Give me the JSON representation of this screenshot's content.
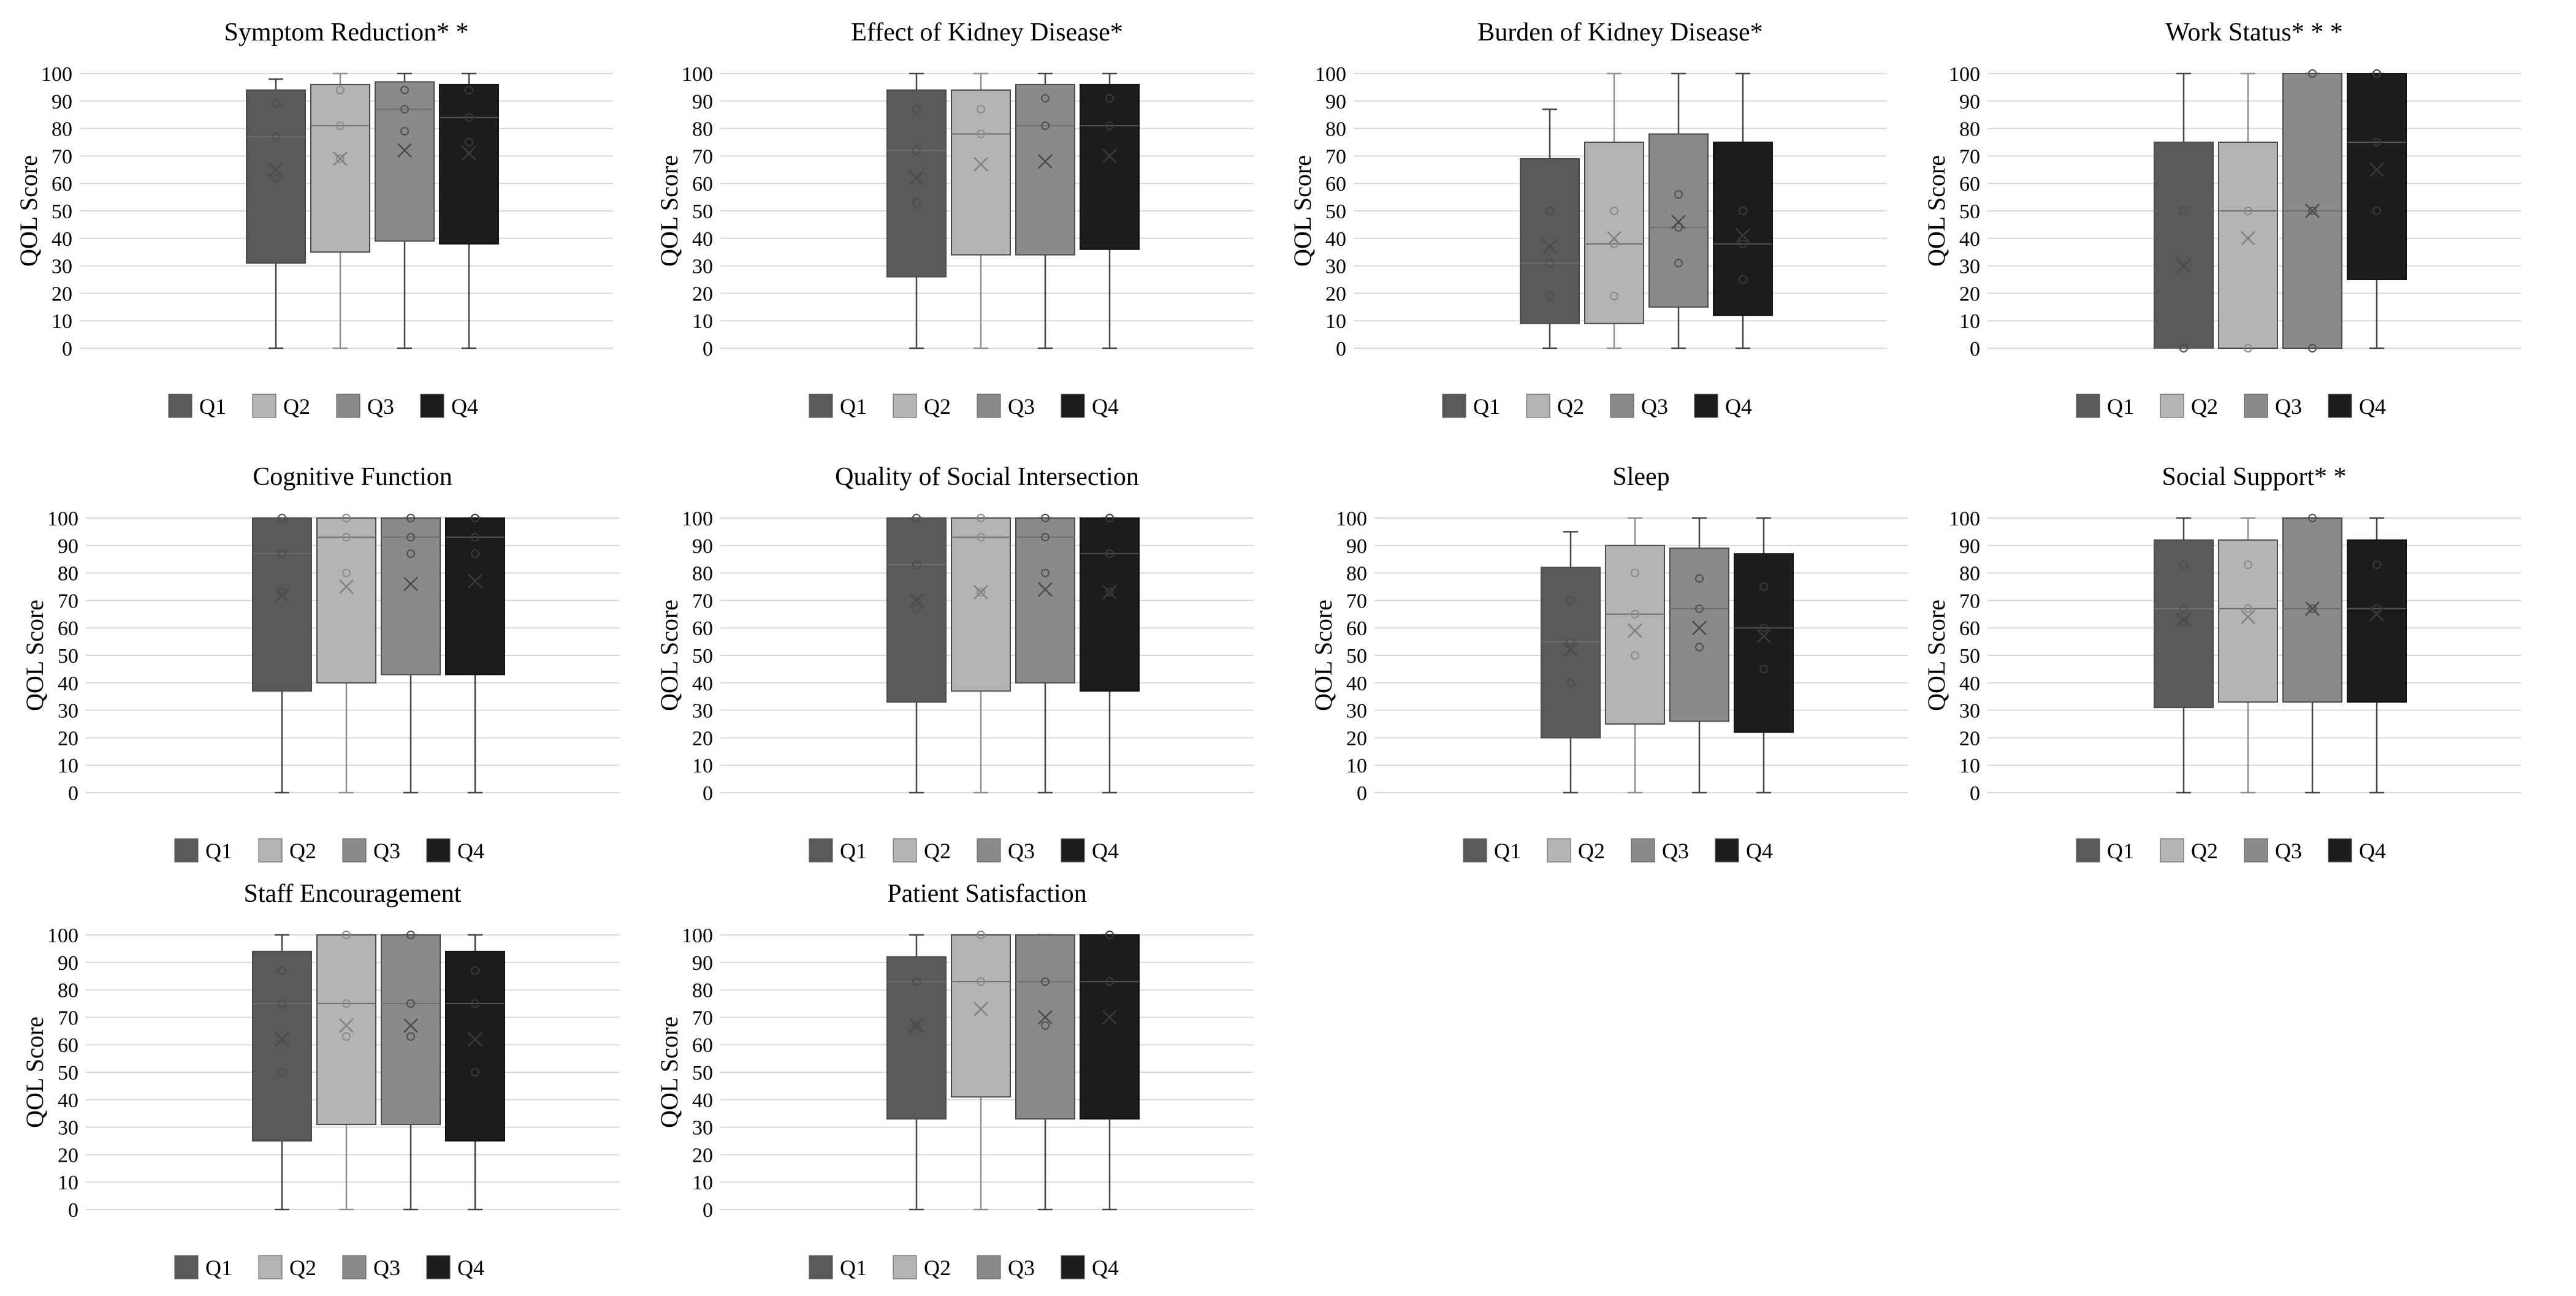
{
  "colors": {
    "Q1": "#595959",
    "Q2": "#b4b4b4",
    "Q3": "#8a8a8a",
    "Q4": "#1c1c1c",
    "grid": "#d9d9d9",
    "marker": "#5e5e5e"
  },
  "chart_data": [
    {
      "type": "box",
      "title": "Symptom Reduction* *",
      "ylabel": "QOL Score",
      "ylim": [
        0,
        100
      ],
      "yticks": [
        0,
        10,
        20,
        30,
        40,
        50,
        60,
        70,
        80,
        90,
        100
      ],
      "categories": [
        "Q1",
        "Q2",
        "Q3",
        "Q4"
      ],
      "legend": [
        "Q1",
        "Q2",
        "Q3",
        "Q4"
      ],
      "series": [
        {
          "name": "Q1",
          "min": 0,
          "q1": 31,
          "median": 77,
          "q3": 94,
          "max": 98,
          "mean": 65,
          "points": [
            89,
            77,
            62
          ]
        },
        {
          "name": "Q2",
          "min": 0,
          "q1": 35,
          "median": 81,
          "q3": 96,
          "max": 100,
          "mean": 69,
          "points": [
            94,
            81,
            69
          ]
        },
        {
          "name": "Q3",
          "min": 0,
          "q1": 39,
          "median": 87,
          "q3": 97,
          "max": 100,
          "mean": 72,
          "points": [
            94,
            87,
            79
          ]
        },
        {
          "name": "Q4",
          "min": 0,
          "q1": 38,
          "median": 84,
          "q3": 96,
          "max": 100,
          "mean": 71,
          "points": [
            94,
            84,
            75
          ]
        }
      ]
    },
    {
      "type": "box",
      "title": "Effect of Kidney Disease*",
      "ylabel": "QOL Score",
      "ylim": [
        0,
        100
      ],
      "yticks": [
        0,
        10,
        20,
        30,
        40,
        50,
        60,
        70,
        80,
        90,
        100
      ],
      "categories": [
        "Q1",
        "Q2",
        "Q3",
        "Q4"
      ],
      "legend": [
        "Q1",
        "Q2",
        "Q3",
        "Q4"
      ],
      "series": [
        {
          "name": "Q1",
          "min": 0,
          "q1": 26,
          "median": 72,
          "q3": 94,
          "max": 100,
          "mean": 62,
          "points": [
            87,
            72,
            53
          ]
        },
        {
          "name": "Q2",
          "min": 0,
          "q1": 34,
          "median": 78,
          "q3": 94,
          "max": 100,
          "mean": 67,
          "points": [
            87,
            78
          ]
        },
        {
          "name": "Q3",
          "min": 0,
          "q1": 34,
          "median": 81,
          "q3": 96,
          "max": 100,
          "mean": 68,
          "points": [
            91,
            81
          ]
        },
        {
          "name": "Q4",
          "min": 0,
          "q1": 36,
          "median": 81,
          "q3": 96,
          "max": 100,
          "mean": 70,
          "points": [
            91,
            81
          ]
        }
      ]
    },
    {
      "type": "box",
      "title": "Burden of Kidney Disease*",
      "ylabel": "QOL Score",
      "ylim": [
        0,
        100
      ],
      "yticks": [
        0,
        10,
        20,
        30,
        40,
        50,
        60,
        70,
        80,
        90,
        100
      ],
      "categories": [
        "Q1",
        "Q2",
        "Q3",
        "Q4"
      ],
      "legend": [
        "Q1",
        "Q2",
        "Q3",
        "Q4"
      ],
      "series": [
        {
          "name": "Q1",
          "min": 0,
          "q1": 9,
          "median": 31,
          "q3": 69,
          "max": 87,
          "mean": 37,
          "points": [
            50,
            31,
            19
          ]
        },
        {
          "name": "Q2",
          "min": 0,
          "q1": 9,
          "median": 38,
          "q3": 75,
          "max": 100,
          "mean": 40,
          "points": [
            50,
            38,
            19
          ]
        },
        {
          "name": "Q3",
          "min": 0,
          "q1": 15,
          "median": 44,
          "q3": 78,
          "max": 100,
          "mean": 46,
          "points": [
            56,
            44,
            31
          ]
        },
        {
          "name": "Q4",
          "min": 0,
          "q1": 12,
          "median": 38,
          "q3": 75,
          "max": 100,
          "mean": 41,
          "points": [
            50,
            38,
            25
          ]
        }
      ]
    },
    {
      "type": "box",
      "title": "Work Status* * *",
      "ylabel": "QOL Score",
      "ylim": [
        0,
        100
      ],
      "yticks": [
        0,
        10,
        20,
        30,
        40,
        50,
        60,
        70,
        80,
        90,
        100
      ],
      "categories": [
        "Q1",
        "Q2",
        "Q3",
        "Q4"
      ],
      "legend": [
        "Q1",
        "Q2",
        "Q3",
        "Q4"
      ],
      "series": [
        {
          "name": "Q1",
          "min": 0,
          "q1": 0,
          "median": 0,
          "q3": 75,
          "max": 100,
          "mean": 30,
          "points": [
            50,
            0
          ]
        },
        {
          "name": "Q2",
          "min": 0,
          "q1": 0,
          "median": 50,
          "q3": 75,
          "max": 100,
          "mean": 40,
          "points": [
            50,
            0
          ]
        },
        {
          "name": "Q3",
          "min": 0,
          "q1": 0,
          "median": 50,
          "q3": 100,
          "max": 100,
          "mean": 50,
          "points": [
            100,
            50,
            0
          ]
        },
        {
          "name": "Q4",
          "min": 0,
          "q1": 25,
          "median": 75,
          "q3": 100,
          "max": 100,
          "mean": 65,
          "points": [
            100,
            75,
            50
          ]
        }
      ]
    },
    {
      "type": "box",
      "title": "Cognitive Function",
      "ylabel": "QOL Score",
      "ylim": [
        0,
        100
      ],
      "yticks": [
        0,
        10,
        20,
        30,
        40,
        50,
        60,
        70,
        80,
        90,
        100
      ],
      "categories": [
        "Q1",
        "Q2",
        "Q3",
        "Q4"
      ],
      "legend": [
        "Q1",
        "Q2",
        "Q3",
        "Q4"
      ],
      "series": [
        {
          "name": "Q1",
          "min": 0,
          "q1": 37,
          "median": 87,
          "q3": 100,
          "max": 100,
          "mean": 72,
          "points": [
            100,
            87,
            73
          ]
        },
        {
          "name": "Q2",
          "min": 0,
          "q1": 40,
          "median": 93,
          "q3": 100,
          "max": 100,
          "mean": 75,
          "points": [
            100,
            93,
            80
          ]
        },
        {
          "name": "Q3",
          "min": 0,
          "q1": 43,
          "median": 93,
          "q3": 100,
          "max": 100,
          "mean": 76,
          "points": [
            100,
            93,
            87
          ]
        },
        {
          "name": "Q4",
          "min": 0,
          "q1": 43,
          "median": 93,
          "q3": 100,
          "max": 100,
          "mean": 77,
          "points": [
            100,
            93,
            87
          ]
        }
      ]
    },
    {
      "type": "box",
      "title": "Quality of Social Intersection",
      "ylabel": "QOL Score",
      "ylim": [
        0,
        100
      ],
      "yticks": [
        0,
        10,
        20,
        30,
        40,
        50,
        60,
        70,
        80,
        90,
        100
      ],
      "categories": [
        "Q1",
        "Q2",
        "Q3",
        "Q4"
      ],
      "legend": [
        "Q1",
        "Q2",
        "Q3",
        "Q4"
      ],
      "series": [
        {
          "name": "Q1",
          "min": 0,
          "q1": 33,
          "median": 83,
          "q3": 100,
          "max": 100,
          "mean": 70,
          "points": [
            100,
            83,
            67
          ]
        },
        {
          "name": "Q2",
          "min": 0,
          "q1": 37,
          "median": 93,
          "q3": 100,
          "max": 100,
          "mean": 73,
          "points": [
            100,
            93,
            73
          ]
        },
        {
          "name": "Q3",
          "min": 0,
          "q1": 40,
          "median": 93,
          "q3": 100,
          "max": 100,
          "mean": 74,
          "points": [
            100,
            93,
            80
          ]
        },
        {
          "name": "Q4",
          "min": 0,
          "q1": 37,
          "median": 87,
          "q3": 100,
          "max": 100,
          "mean": 73,
          "points": [
            100,
            87,
            73
          ]
        }
      ]
    },
    {
      "type": "box",
      "title": "Sleep",
      "ylabel": "QOL Score",
      "ylim": [
        0,
        100
      ],
      "yticks": [
        0,
        10,
        20,
        30,
        40,
        50,
        60,
        70,
        80,
        90,
        100
      ],
      "categories": [
        "Q1",
        "Q2",
        "Q3",
        "Q4"
      ],
      "legend": [
        "Q1",
        "Q2",
        "Q3",
        "Q4"
      ],
      "series": [
        {
          "name": "Q1",
          "min": 0,
          "q1": 20,
          "median": 55,
          "q3": 82,
          "max": 95,
          "mean": 52,
          "points": [
            70,
            55,
            40
          ]
        },
        {
          "name": "Q2",
          "min": 0,
          "q1": 25,
          "median": 65,
          "q3": 90,
          "max": 100,
          "mean": 59,
          "points": [
            80,
            65,
            50
          ]
        },
        {
          "name": "Q3",
          "min": 0,
          "q1": 26,
          "median": 67,
          "q3": 89,
          "max": 100,
          "mean": 60,
          "points": [
            78,
            67,
            53
          ]
        },
        {
          "name": "Q4",
          "min": 0,
          "q1": 22,
          "median": 60,
          "q3": 87,
          "max": 100,
          "mean": 57,
          "points": [
            75,
            60,
            45
          ]
        }
      ]
    },
    {
      "type": "box",
      "title": "Social Support* *",
      "ylabel": "QOL Score",
      "ylim": [
        0,
        100
      ],
      "yticks": [
        0,
        10,
        20,
        30,
        40,
        50,
        60,
        70,
        80,
        90,
        100
      ],
      "categories": [
        "Q1",
        "Q2",
        "Q3",
        "Q4"
      ],
      "legend": [
        "Q1",
        "Q2",
        "Q3",
        "Q4"
      ],
      "series": [
        {
          "name": "Q1",
          "min": 0,
          "q1": 31,
          "median": 67,
          "q3": 92,
          "max": 100,
          "mean": 63,
          "points": [
            83,
            67,
            62
          ]
        },
        {
          "name": "Q2",
          "min": 0,
          "q1": 33,
          "median": 67,
          "q3": 92,
          "max": 100,
          "mean": 64,
          "points": [
            83,
            67
          ]
        },
        {
          "name": "Q3",
          "min": 0,
          "q1": 33,
          "median": 67,
          "q3": 100,
          "max": 100,
          "mean": 67,
          "points": [
            100,
            67
          ]
        },
        {
          "name": "Q4",
          "min": 0,
          "q1": 33,
          "median": 67,
          "q3": 92,
          "max": 100,
          "mean": 65,
          "points": [
            83,
            67
          ]
        }
      ]
    },
    {
      "type": "box",
      "title": "Staff Encouragement",
      "ylabel": "QOL Score",
      "ylim": [
        0,
        100
      ],
      "yticks": [
        0,
        10,
        20,
        30,
        40,
        50,
        60,
        70,
        80,
        90,
        100
      ],
      "categories": [
        "Q1",
        "Q2",
        "Q3",
        "Q4"
      ],
      "legend": [
        "Q1",
        "Q2",
        "Q3",
        "Q4"
      ],
      "series": [
        {
          "name": "Q1",
          "min": 0,
          "q1": 25,
          "median": 75,
          "q3": 94,
          "max": 100,
          "mean": 62,
          "points": [
            87,
            75,
            50
          ]
        },
        {
          "name": "Q2",
          "min": 0,
          "q1": 31,
          "median": 75,
          "q3": 100,
          "max": 100,
          "mean": 67,
          "points": [
            100,
            75,
            63
          ]
        },
        {
          "name": "Q3",
          "min": 0,
          "q1": 31,
          "median": 75,
          "q3": 100,
          "max": 100,
          "mean": 67,
          "points": [
            100,
            75,
            63
          ]
        },
        {
          "name": "Q4",
          "min": 0,
          "q1": 25,
          "median": 75,
          "q3": 94,
          "max": 100,
          "mean": 62,
          "points": [
            87,
            75,
            50
          ]
        }
      ]
    },
    {
      "type": "box",
      "title": "Patient Satisfaction",
      "ylabel": "QOL Score",
      "ylim": [
        0,
        100
      ],
      "yticks": [
        0,
        10,
        20,
        30,
        40,
        50,
        60,
        70,
        80,
        90,
        100
      ],
      "categories": [
        "Q1",
        "Q2",
        "Q3",
        "Q4"
      ],
      "legend": [
        "Q1",
        "Q2",
        "Q3",
        "Q4"
      ],
      "series": [
        {
          "name": "Q1",
          "min": 0,
          "q1": 33,
          "median": 83,
          "q3": 92,
          "max": 100,
          "mean": 67,
          "points": [
            83,
            67
          ]
        },
        {
          "name": "Q2",
          "min": 0,
          "q1": 41,
          "median": 83,
          "q3": 100,
          "max": 100,
          "mean": 73,
          "points": [
            100,
            83
          ]
        },
        {
          "name": "Q3",
          "min": 0,
          "q1": 33,
          "median": 83,
          "q3": 100,
          "max": 100,
          "mean": 70,
          "points": [
            83,
            67
          ]
        },
        {
          "name": "Q4",
          "min": 0,
          "q1": 33,
          "median": 83,
          "q3": 100,
          "max": 100,
          "mean": 70,
          "points": [
            100,
            83
          ]
        }
      ]
    }
  ]
}
